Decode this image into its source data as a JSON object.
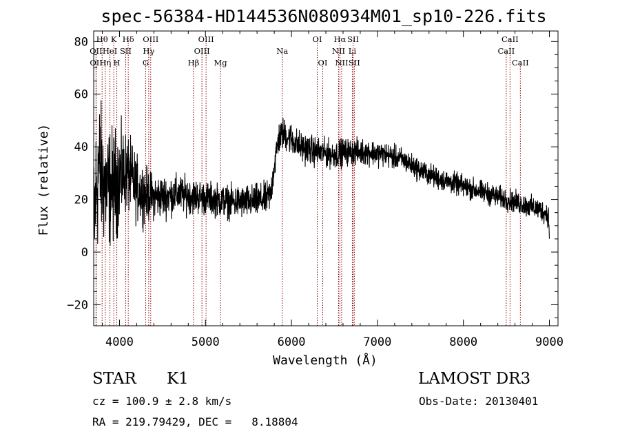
{
  "chart_data": {
    "type": "line",
    "title": "spec-56384-HD144536N080934M01_sp10-226.fits",
    "xlabel": "Wavelength (Å)",
    "ylabel": "Flux (relative)",
    "xlim": [
      3700,
      9100
    ],
    "ylim": [
      -28,
      84
    ],
    "xticks": [
      4000,
      5000,
      6000,
      7000,
      8000,
      9000
    ],
    "yticks": [
      -20,
      0,
      20,
      40,
      60,
      80
    ],
    "x_tick_labels": [
      "4000",
      "5000",
      "6000",
      "7000",
      "8000",
      "9000"
    ],
    "y_tick_labels": [
      "−20",
      "0",
      "20",
      "40",
      "60",
      "80"
    ],
    "spectrum_anchors": {
      "x": [
        3700,
        3720,
        3760,
        3800,
        3850,
        3900,
        3950,
        4000,
        4050,
        4100,
        4200,
        4300,
        4400,
        4500,
        4700,
        4900,
        5100,
        5300,
        5500,
        5700,
        5760,
        5800,
        5850,
        5900,
        6000,
        6100,
        6300,
        6500,
        6600,
        6700,
        6900,
        7100,
        7300,
        7500,
        7700,
        7900,
        8100,
        8300,
        8500,
        8700,
        8900,
        8990,
        9000
      ],
      "y": [
        5,
        20,
        33,
        28,
        24,
        25,
        26,
        28,
        30,
        30,
        24,
        22,
        21,
        21,
        22,
        21,
        20,
        19,
        19,
        20,
        22,
        33,
        43,
        45,
        43,
        40,
        38,
        37,
        38,
        38,
        38,
        37,
        35,
        31,
        28,
        26,
        24,
        22,
        20,
        18,
        16,
        14,
        4
      ],
      "noise_amplitude": {
        "x": [
          3700,
          3800,
          3950,
          4100,
          4400,
          5000,
          5800,
          6500,
          7500,
          9000
        ],
        "y": [
          15,
          12,
          10,
          7,
          4,
          3,
          3,
          2.5,
          2,
          2
        ]
      }
    },
    "line_markers": [
      {
        "label": "Hθ",
        "x": 3798,
        "row": 0
      },
      {
        "label": "OII",
        "x": 3727,
        "row": 1
      },
      {
        "label": "OII",
        "x": 3729,
        "row": 2
      },
      {
        "label": "Hη",
        "x": 3835,
        "row": 2
      },
      {
        "label": "HeI",
        "x": 3889,
        "row": 1
      },
      {
        "label": "K",
        "x": 3934,
        "row": 0
      },
      {
        "label": "H",
        "x": 3969,
        "row": 2
      },
      {
        "label": "SII",
        "x": 4072,
        "row": 1
      },
      {
        "label": "Hδ",
        "x": 4102,
        "row": 0
      },
      {
        "label": "OIII",
        "x": 4363,
        "row": 0
      },
      {
        "label": "Hγ",
        "x": 4340,
        "row": 1
      },
      {
        "label": "G",
        "x": 4305,
        "row": 2
      },
      {
        "label": "Hβ",
        "x": 4861,
        "row": 2
      },
      {
        "label": "OIII",
        "x": 5007,
        "row": 0
      },
      {
        "label": "OIII",
        "x": 4959,
        "row": 1
      },
      {
        "label": "Mg",
        "x": 5175,
        "row": 2
      },
      {
        "label": "Na",
        "x": 5893,
        "row": 1
      },
      {
        "label": "OI",
        "x": 6300,
        "row": 0
      },
      {
        "label": "OI",
        "x": 6364,
        "row": 2
      },
      {
        "label": "Hα",
        "x": 6563,
        "row": 0
      },
      {
        "label": "NII",
        "x": 6548,
        "row": 1
      },
      {
        "label": "NII",
        "x": 6584,
        "row": 2
      },
      {
        "label": "SII",
        "x": 6717,
        "row": 0
      },
      {
        "label": "Li",
        "x": 6708,
        "row": 1
      },
      {
        "label": "SII",
        "x": 6731,
        "row": 2
      },
      {
        "label": "CaII",
        "x": 8542,
        "row": 0
      },
      {
        "label": "CaII",
        "x": 8498,
        "row": 1
      },
      {
        "label": "CaII",
        "x": 8662,
        "row": 2
      }
    ],
    "colors": {
      "spectrum": "#000000",
      "line_markers": "#8b0000",
      "axes": "#000000"
    }
  },
  "footer": {
    "object_class": "STAR",
    "subclass": "K1",
    "survey": "LAMOST DR3",
    "cz": "cz = 100.9 ± 2.8 km/s",
    "obs_date": "Obs-Date: 20130401",
    "coords": "RA = 219.79429, DEC =   8.18804"
  }
}
